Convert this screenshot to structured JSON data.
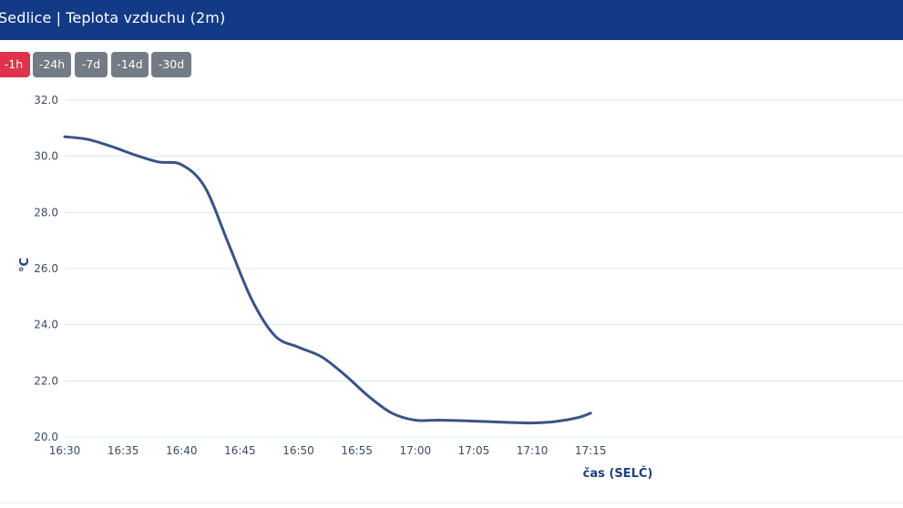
{
  "header": {
    "title": "Sedlice | Teplota vzduchu (2m)"
  },
  "range_buttons": [
    {
      "label": "-1h",
      "active": true
    },
    {
      "label": "-24h",
      "active": false
    },
    {
      "label": "-7d",
      "active": false
    },
    {
      "label": "-14d",
      "active": false
    },
    {
      "label": "-30d",
      "active": false
    }
  ],
  "colors": {
    "header_bg": "#123a86",
    "active_button": "#e0324b",
    "inactive_button": "#737b84",
    "series": "#3b5287",
    "grid": "#d7e9ee"
  },
  "chart_data": {
    "type": "line",
    "title": "",
    "xlabel": "čas (SELČ)",
    "ylabel": "°C",
    "ylim": [
      20.0,
      32.0
    ],
    "y_ticks": [
      "20.0",
      "22.0",
      "24.0",
      "26.0",
      "28.0",
      "30.0",
      "32.0"
    ],
    "x_ticks": [
      "16:30",
      "16:35",
      "16:40",
      "16:45",
      "16:50",
      "16:55",
      "17:00",
      "17:05",
      "17:10",
      "17:15"
    ],
    "grid": "horizontal",
    "series": [
      {
        "values": [
          {
            "x": "16:30",
            "y": 30.7
          },
          {
            "x": "16:32",
            "y": 30.6
          },
          {
            "x": "16:34",
            "y": 30.35
          },
          {
            "x": "16:36",
            "y": 30.05
          },
          {
            "x": "16:38",
            "y": 29.8
          },
          {
            "x": "16:40",
            "y": 29.7
          },
          {
            "x": "16:42",
            "y": 28.9
          },
          {
            "x": "16:44",
            "y": 26.9
          },
          {
            "x": "16:46",
            "y": 24.9
          },
          {
            "x": "16:48",
            "y": 23.6
          },
          {
            "x": "16:50",
            "y": 23.2
          },
          {
            "x": "16:52",
            "y": 22.85
          },
          {
            "x": "16:54",
            "y": 22.2
          },
          {
            "x": "16:56",
            "y": 21.45
          },
          {
            "x": "16:58",
            "y": 20.85
          },
          {
            "x": "17:00",
            "y": 20.6
          },
          {
            "x": "17:02",
            "y": 20.6
          },
          {
            "x": "17:04",
            "y": 20.58
          },
          {
            "x": "17:06",
            "y": 20.55
          },
          {
            "x": "17:08",
            "y": 20.52
          },
          {
            "x": "17:10",
            "y": 20.5
          },
          {
            "x": "17:12",
            "y": 20.55
          },
          {
            "x": "17:14",
            "y": 20.7
          },
          {
            "x": "17:15",
            "y": 20.85
          }
        ]
      }
    ]
  }
}
